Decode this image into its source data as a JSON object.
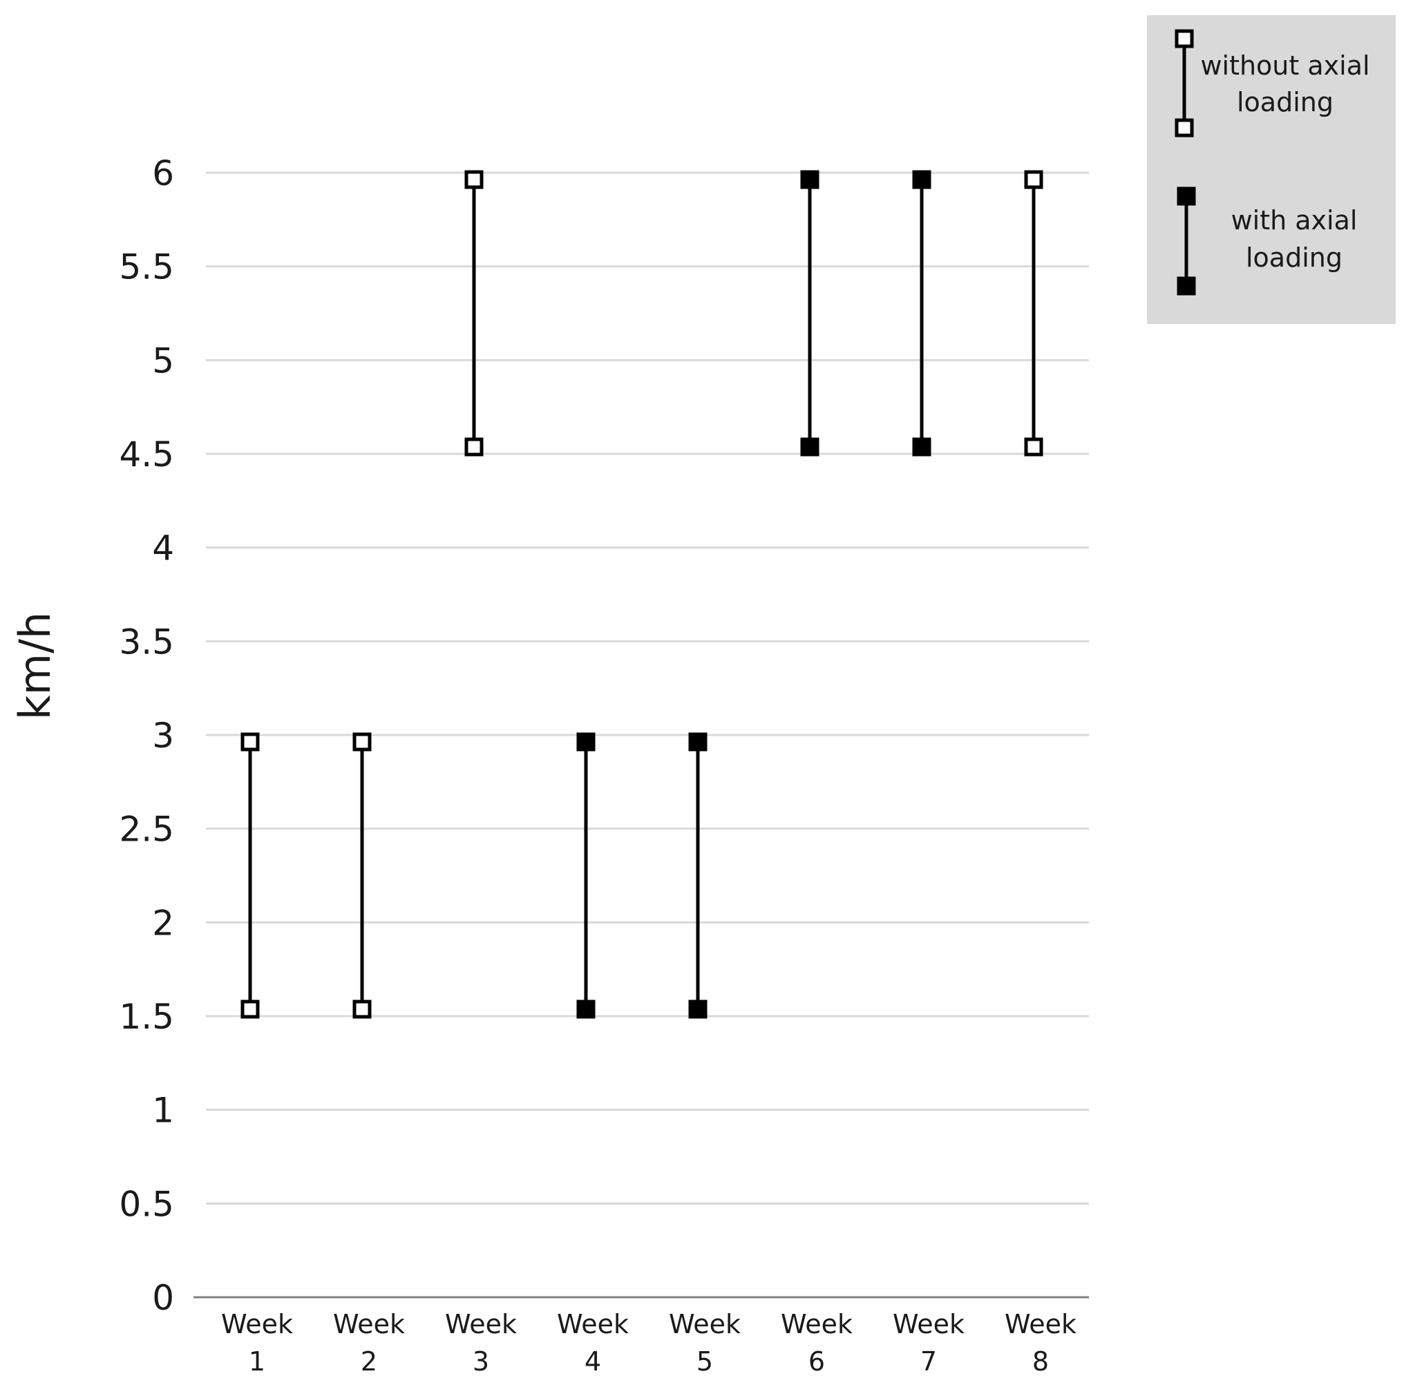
{
  "chart_data": {
    "type": "range",
    "ylabel": "km/h",
    "xlabel": "",
    "ylim": [
      0,
      6
    ],
    "yticks": [
      {
        "value": 6,
        "label": "6"
      },
      {
        "value": 5.5,
        "label": "5.5"
      },
      {
        "value": 5,
        "label": "5"
      },
      {
        "value": 4.5,
        "label": "4.5"
      },
      {
        "value": 4,
        "label": "4"
      },
      {
        "value": 3.5,
        "label": "3.5"
      },
      {
        "value": 3,
        "label": "3"
      },
      {
        "value": 2.5,
        "label": "2.5"
      },
      {
        "value": 2,
        "label": "2"
      },
      {
        "value": 1.5,
        "label": "1.5"
      },
      {
        "value": 1,
        "label": "1"
      },
      {
        "value": 0.5,
        "label": "0.5"
      },
      {
        "value": 0,
        "label": "0"
      }
    ],
    "grid": true,
    "categories": [
      {
        "line1": "Week",
        "line2": "1"
      },
      {
        "line1": "Week",
        "line2": "2"
      },
      {
        "line1": "Week",
        "line2": "3"
      },
      {
        "line1": "Week",
        "line2": "4"
      },
      {
        "line1": "Week",
        "line2": "5"
      },
      {
        "line1": "Week",
        "line2": "6"
      },
      {
        "line1": "Week",
        "line2": "7"
      },
      {
        "line1": "Week",
        "line2": "8"
      }
    ],
    "ranges": [
      {
        "low": 1.5,
        "high": 3,
        "series": "without"
      },
      {
        "low": 1.5,
        "high": 3,
        "series": "without"
      },
      {
        "low": 4.5,
        "high": 6,
        "series": "without"
      },
      {
        "low": 1.5,
        "high": 3,
        "series": "with"
      },
      {
        "low": 1.5,
        "high": 3,
        "series": "with"
      },
      {
        "low": 4.5,
        "high": 6,
        "series": "with"
      },
      {
        "low": 4.5,
        "high": 6,
        "series": "with"
      },
      {
        "low": 4.5,
        "high": 6,
        "series": "without"
      }
    ],
    "legend": {
      "placement": "top-right",
      "background": "#d9d9d9",
      "items": [
        {
          "key": "without",
          "line1": "without axial",
          "line2": "loading",
          "marker": "open-square"
        },
        {
          "key": "with",
          "line1": "with axial",
          "line2": "loading",
          "marker": "filled-square"
        }
      ]
    },
    "colors": {
      "line": "#000000",
      "grid": "#d9d9d9",
      "axis": "#808080"
    }
  }
}
